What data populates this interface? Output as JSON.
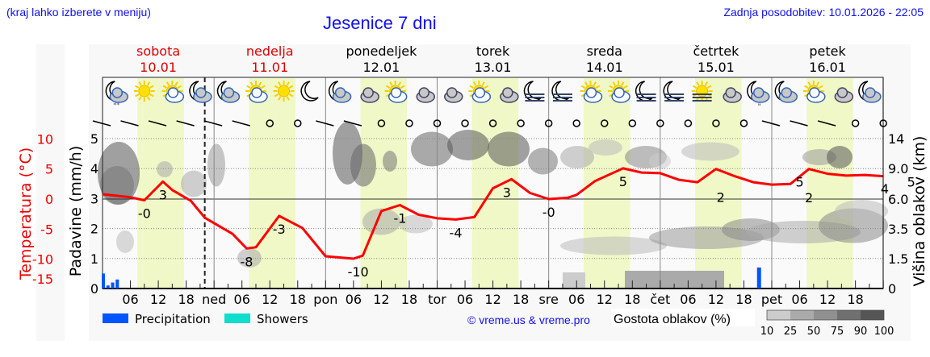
{
  "header": {
    "menu_hint": "(kraj lahko izberete v meniju)",
    "title": "Jesenice 7 dni",
    "last_update": "Zadnja posodobitev: 10.01.2026 - 22:05"
  },
  "days": [
    {
      "name": "sobota",
      "date": "10.01",
      "weekend": true
    },
    {
      "name": "nedelja",
      "date": "11.01",
      "weekend": true
    },
    {
      "name": "ponedeljek",
      "date": "12.01",
      "weekend": false
    },
    {
      "name": "torek",
      "date": "13.01",
      "weekend": false
    },
    {
      "name": "sreda",
      "date": "14.01",
      "weekend": false
    },
    {
      "name": "četrtek",
      "date": "15.01",
      "weekend": false
    },
    {
      "name": "petek",
      "date": "16.01",
      "weekend": false
    }
  ],
  "axes": {
    "temperature_label": "Temperatura (°C)",
    "precip_label": "Padavine (mm/h)",
    "cloud_height_label": "Višina oblakov (km)",
    "temperature_ticks": [
      "10",
      "5",
      "0",
      "-5",
      "-10",
      "-15"
    ],
    "precip_ticks": [
      "5",
      "4",
      "3",
      "2",
      "1",
      "0"
    ],
    "cloud_height_ticks": [
      "14",
      "9.0",
      "6.0",
      "3.5",
      "1.5",
      "0"
    ],
    "x_ticks": [
      "06",
      "12",
      "18",
      "ned",
      "06",
      "12",
      "18",
      "pon",
      "06",
      "12",
      "18",
      "tor",
      "06",
      "12",
      "18",
      "sre",
      "06",
      "12",
      "18",
      "čet",
      "06",
      "12",
      "18",
      "pet",
      "06",
      "12",
      "18"
    ]
  },
  "legend": {
    "precipitation": "Precipitation",
    "showers": "Showers",
    "copyright": "© vreme.us & vreme.pro",
    "cloud_density_label": "Gostota oblakov (%)",
    "cloud_density_ticks": [
      "10",
      "25",
      "50",
      "75",
      "90",
      "100"
    ],
    "colors": {
      "precipitation": "#0055ff",
      "showers": "#11ddcc",
      "temperature": "#ff0000",
      "daylight": "#f0f8c8"
    }
  },
  "weather_icons": [
    "moon-cloud-snow",
    "sun",
    "sun-cloud",
    "moon-cloud",
    "moon-cloud",
    "sun-cloud",
    "sun",
    "moon",
    "moon-cloud",
    "cloud",
    "sun-cloud",
    "cloud",
    "cloud",
    "sun-cloud",
    "cloud",
    "moon-fog",
    "moon-fog",
    "sun-cloud",
    "sun-cloud",
    "moon-fog",
    "moon-fog",
    "sun-fog",
    "cloud",
    "moon-cloud-rain",
    "moon-cloud",
    "sun-cloud",
    "cloud",
    "moon-cloud"
  ],
  "chart_data": {
    "type": "line",
    "title": "Jesenice 7 dni",
    "xlabel": "",
    "ylabel": "Temperatura (°C)",
    "ylim": [
      -15,
      13
    ],
    "series": [
      {
        "name": "Temperatura",
        "color": "#ff0000",
        "x_hours": [
          0,
          6,
          9,
          13,
          15,
          19,
          22,
          28,
          31,
          33,
          38,
          43,
          48,
          54,
          56,
          60,
          64,
          68,
          72,
          76,
          80,
          84,
          88,
          92,
          96,
          100,
          102,
          106,
          112,
          116,
          120,
          124,
          128,
          132,
          136,
          140,
          144,
          148,
          152,
          156,
          160,
          164,
          168
        ],
        "values": [
          0.8,
          0.3,
          -0.2,
          2.9,
          1.5,
          -0.3,
          -3.1,
          -5.8,
          -8.2,
          -8.0,
          -2.8,
          -4.8,
          -9.5,
          -9.9,
          -9.4,
          -2.0,
          -1.0,
          -2.6,
          -3.2,
          -3.4,
          -3.0,
          1.8,
          3.3,
          1.0,
          0.0,
          0.2,
          0.7,
          3.0,
          5.1,
          4.4,
          4.3,
          3.2,
          2.8,
          5.0,
          3.8,
          2.8,
          2.4,
          2.5,
          5.0,
          4.2,
          3.9,
          4.0,
          3.8
        ]
      },
      {
        "name": "Precipitation",
        "color": "#0055ff",
        "x_hours": [
          0,
          1,
          2,
          3,
          141
        ],
        "values": [
          0.5,
          0.1,
          0.2,
          0.3,
          0.7
        ]
      }
    ],
    "temperature_labels": [
      {
        "day": "sobota",
        "min": "-0",
        "max": "3"
      },
      {
        "day": "nedelja",
        "min": "-8",
        "max": "-3"
      },
      {
        "day": "ponedeljek",
        "min": "-10",
        "max": "-1"
      },
      {
        "day": "torek",
        "min": "-4",
        "max": "3"
      },
      {
        "day": "sreda",
        "min": "-0",
        "max": "5"
      },
      {
        "day": "četrtek",
        "min": "2",
        "max": "5"
      },
      {
        "day": "petek",
        "min": "2",
        "max": "5"
      },
      {
        "day": "end",
        "min": "4",
        "max": ""
      }
    ],
    "secondary_axes": {
      "precip_ylim": [
        0,
        5.5
      ],
      "cloud_height_ticks_km": [
        0,
        1.5,
        3.5,
        6.0,
        9.0,
        14
      ]
    },
    "grid": true,
    "legend_position": "bottom"
  }
}
